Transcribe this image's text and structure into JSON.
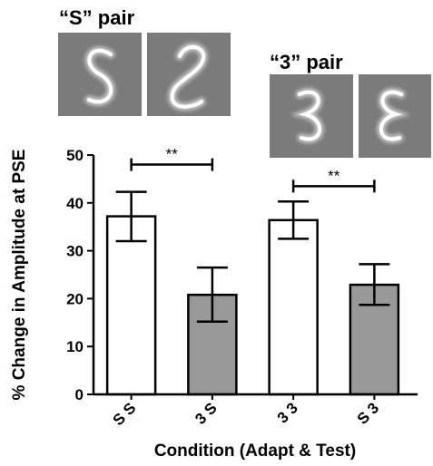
{
  "chart_data": {
    "type": "bar",
    "categories": [
      "S S",
      "3 S",
      "3 3",
      "S 3"
    ],
    "values": [
      37.2,
      20.8,
      36.4,
      22.9
    ],
    "errors": [
      {
        "low": 32.0,
        "high": 42.3
      },
      {
        "low": 15.2,
        "high": 26.5
      },
      {
        "low": 32.5,
        "high": 40.3
      },
      {
        "low": 18.7,
        "high": 27.2
      }
    ],
    "bar_fills": [
      "#ffffff",
      "#999999",
      "#ffffff",
      "#999999"
    ],
    "xlabel": "Condition (Adapt & Test)",
    "ylabel": "% Change in Amplitude at PSE",
    "ylim": [
      0,
      50
    ],
    "yticks": [
      0,
      10,
      20,
      30,
      40,
      50
    ],
    "grid": false,
    "significance": [
      {
        "from": 0,
        "to": 1,
        "label": "**",
        "level": 48.0
      },
      {
        "from": 2,
        "to": 3,
        "label": "**",
        "level": 43.5
      }
    ]
  },
  "stimuli": {
    "s_pair_title": "“S” pair",
    "three_pair_title": "“3” pair"
  },
  "colors": {
    "axis": "#000000",
    "bar_outline": "#000000",
    "stimulus_background": "#7b7b7b",
    "stimulus_stroke": "#ffffff"
  }
}
